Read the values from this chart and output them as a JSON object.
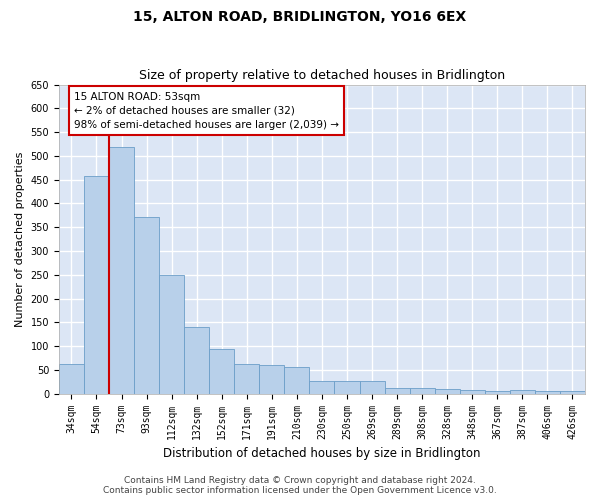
{
  "title": "15, ALTON ROAD, BRIDLINGTON, YO16 6EX",
  "subtitle": "Size of property relative to detached houses in Bridlington",
  "xlabel": "Distribution of detached houses by size in Bridlington",
  "ylabel": "Number of detached properties",
  "footer_line1": "Contains HM Land Registry data © Crown copyright and database right 2024.",
  "footer_line2": "Contains public sector information licensed under the Open Government Licence v3.0.",
  "categories": [
    "34sqm",
    "54sqm",
    "73sqm",
    "93sqm",
    "112sqm",
    "132sqm",
    "152sqm",
    "171sqm",
    "191sqm",
    "210sqm",
    "230sqm",
    "250sqm",
    "269sqm",
    "289sqm",
    "308sqm",
    "328sqm",
    "348sqm",
    "367sqm",
    "387sqm",
    "406sqm",
    "426sqm"
  ],
  "values": [
    62,
    458,
    519,
    372,
    249,
    140,
    93,
    63,
    60,
    56,
    27,
    26,
    26,
    11,
    12,
    9,
    8,
    5,
    7,
    5,
    5
  ],
  "bar_color": "#b8d0ea",
  "bar_edge_color": "#6b9ec8",
  "vline_x": 1.5,
  "vline_color": "#cc0000",
  "annotation_text": "15 ALTON ROAD: 53sqm\n← 2% of detached houses are smaller (32)\n98% of semi-detached houses are larger (2,039) →",
  "annotation_box_facecolor": "#ffffff",
  "annotation_box_edgecolor": "#cc0000",
  "ylim": [
    0,
    650
  ],
  "yticks": [
    0,
    50,
    100,
    150,
    200,
    250,
    300,
    350,
    400,
    450,
    500,
    550,
    600,
    650
  ],
  "fig_bg_color": "#ffffff",
  "plot_bg_color": "#dce6f5",
  "grid_color": "#ffffff",
  "title_fontsize": 10,
  "subtitle_fontsize": 9,
  "xlabel_fontsize": 8.5,
  "ylabel_fontsize": 8,
  "tick_fontsize": 7,
  "annot_fontsize": 7.5,
  "footer_fontsize": 6.5
}
